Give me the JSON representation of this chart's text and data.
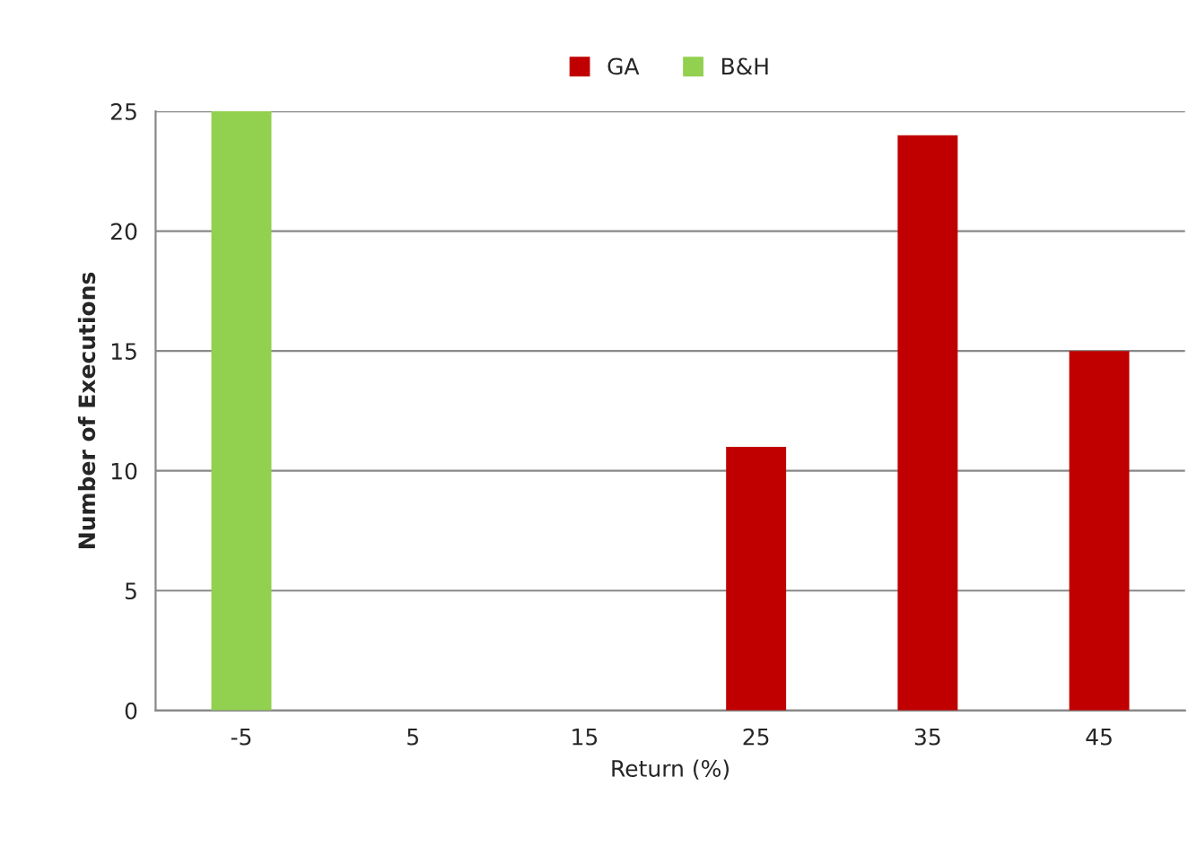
{
  "chart_data": {
    "type": "bar",
    "xlabel": "Return (%)",
    "ylabel": "Number of Executions",
    "categories": [
      "-5",
      "5",
      "15",
      "25",
      "35",
      "45"
    ],
    "series": [
      {
        "name": "GA",
        "color": "#c00000",
        "values": [
          null,
          null,
          null,
          11,
          24,
          15
        ]
      },
      {
        "name": "B&H",
        "color": "#92d050",
        "values": [
          25,
          null,
          null,
          null,
          null,
          null
        ]
      }
    ],
    "ylim": [
      0,
      25
    ],
    "yticks": [
      0,
      5,
      10,
      15,
      20,
      25
    ],
    "grid": "y",
    "legend": "top"
  }
}
